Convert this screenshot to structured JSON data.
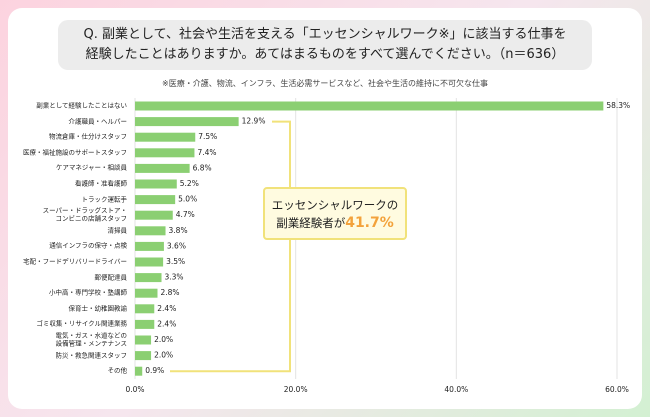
{
  "chart_data": {
    "type": "bar",
    "orientation": "horizontal",
    "title_lines": [
      "Q. 副業として、社会や生活を支える「エッセンシャルワーク※」に該当する仕事を",
      "経験したことはありますか。あてはまるものをすべて選んでください。（n＝636）"
    ],
    "subtitle": "※医療・介護、物流、インフラ、生活必需サービスなど、社会や生活の維持に不可欠な仕事",
    "categories": [
      "副業として経験したことはない",
      "介護職員・ヘルパー",
      "物流倉庫・仕分けスタッフ",
      "医療・福祉施設のサポートスタッフ",
      "ケアマネジャー・相談員",
      "看護師・准看護師",
      "トラック運転手",
      "スーパー・ドラッグストア・\nコンビニの店舗スタッフ",
      "清掃員",
      "通信インフラの保守・点検",
      "宅配・フードデリバリードライバー",
      "郵便配達員",
      "小中高・専門学校・塾講師",
      "保育士・幼稚園教諭",
      "ゴミ収集・リサイクル関連業務",
      "電気・ガス・水道などの\n設備管理・メンテナンス",
      "防災・救急関連スタッフ",
      "その他"
    ],
    "values": [
      58.3,
      12.9,
      7.5,
      7.4,
      6.8,
      5.2,
      5.0,
      4.7,
      3.8,
      3.6,
      3.5,
      3.3,
      2.8,
      2.4,
      2.4,
      2.0,
      2.0,
      0.9
    ],
    "value_labels": [
      "58.3%",
      "12.9%",
      "7.5%",
      "7.4%",
      "6.8%",
      "5.2%",
      "5.0%",
      "4.7%",
      "3.8%",
      "3.6%",
      "3.5%",
      "3.3%",
      "2.8%",
      "2.4%",
      "2.4%",
      "2.0%",
      "2.0%",
      "0.9%"
    ],
    "color": "#8bcf72",
    "xlim": [
      0,
      60
    ],
    "xticks": [
      {
        "value": 0,
        "label": "0.0%"
      },
      {
        "value": 20,
        "label": "20.0%"
      },
      {
        "value": 40,
        "label": "40.0%"
      },
      {
        "value": 60,
        "label": "60.0%"
      }
    ],
    "grid": true,
    "annotation": {
      "line1": "エッセンシャルワークの",
      "line2": "副業経験者が",
      "highlight": "41.7%"
    }
  }
}
